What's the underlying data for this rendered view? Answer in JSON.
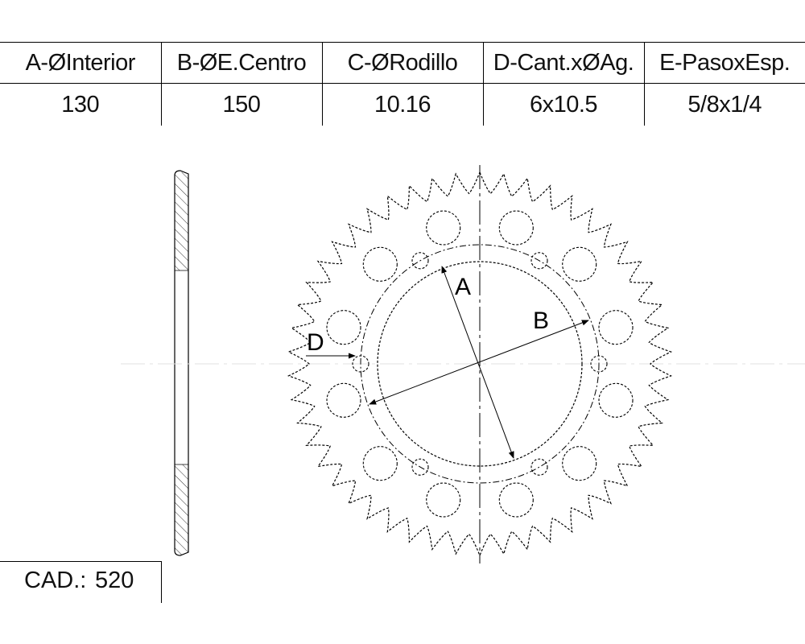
{
  "table": {
    "headers": [
      "A-ØInterior",
      "B-ØE.Centro",
      "C-ØRodillo",
      "D-Cant.xØAg.",
      "E-PasoxEsp."
    ],
    "values": [
      "130",
      "150",
      "10.16",
      "6x10.5",
      "5/8x1/4"
    ]
  },
  "cad": {
    "label": "CAD.:",
    "value": "520"
  },
  "drawing": {
    "teeth": 50,
    "bolt_holes": 6,
    "lightening_holes": 12,
    "dim_labels": {
      "a": "A",
      "b": "B",
      "d": "D"
    }
  }
}
